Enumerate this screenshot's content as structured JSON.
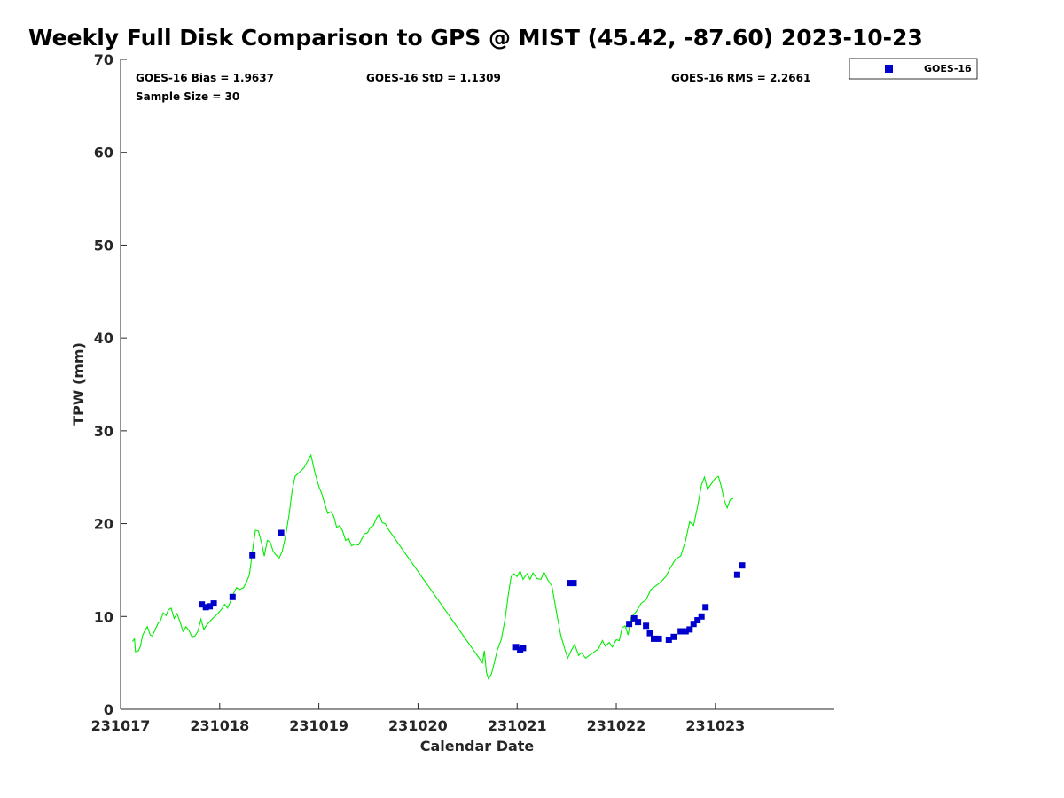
{
  "chart_data": {
    "type": "scatter",
    "title": "Weekly Full Disk Comparison to GPS @ MIST (45.42, -87.60) 2023-10-23",
    "xlabel": "Calendar Date",
    "ylabel": "TPW (mm)",
    "xlim": [
      231017,
      231024.2
    ],
    "ylim": [
      0,
      70
    ],
    "x_ticks": [
      {
        "value": 231017,
        "label": "231017"
      },
      {
        "value": 231018,
        "label": "231018"
      },
      {
        "value": 231019,
        "label": "231019"
      },
      {
        "value": 231020,
        "label": "231020"
      },
      {
        "value": 231021,
        "label": "231021"
      },
      {
        "value": 231022,
        "label": "231022"
      },
      {
        "value": 231023,
        "label": "231023"
      }
    ],
    "y_ticks": [
      {
        "value": 0,
        "label": "0"
      },
      {
        "value": 10,
        "label": "10"
      },
      {
        "value": 20,
        "label": "20"
      },
      {
        "value": 30,
        "label": "30"
      },
      {
        "value": 40,
        "label": "40"
      },
      {
        "value": 50,
        "label": "50"
      },
      {
        "value": 60,
        "label": "60"
      },
      {
        "value": 70,
        "label": "70"
      }
    ],
    "stats": {
      "bias": "GOES-16 Bias = 1.9637",
      "std": "GOES-16 StD = 1.1309",
      "rms": "GOES-16 RMS = 2.2661",
      "sample": "Sample Size = 30"
    },
    "legend": {
      "position": "outside-top-right",
      "entries": [
        "GOES-16"
      ]
    },
    "grid": false,
    "colors": {
      "gps_line": "#00ee00",
      "goes16": "#0000cc"
    },
    "series": [
      {
        "kind": "line",
        "color": "#00ee00",
        "points": [
          [
            231017.12,
            7.3
          ],
          [
            231017.14,
            7.6
          ],
          [
            231017.15,
            6.2
          ],
          [
            231017.18,
            6.3
          ],
          [
            231017.2,
            6.8
          ],
          [
            231017.22,
            7.9
          ],
          [
            231017.25,
            8.6
          ],
          [
            231017.27,
            8.9
          ],
          [
            231017.3,
            8.0
          ],
          [
            231017.32,
            7.9
          ],
          [
            231017.35,
            8.6
          ],
          [
            231017.38,
            9.3
          ],
          [
            231017.4,
            9.5
          ],
          [
            231017.43,
            10.4
          ],
          [
            231017.46,
            10.1
          ],
          [
            231017.48,
            10.7
          ],
          [
            231017.51,
            10.9
          ],
          [
            231017.54,
            9.8
          ],
          [
            231017.57,
            10.3
          ],
          [
            231017.6,
            9.4
          ],
          [
            231017.63,
            8.4
          ],
          [
            231017.66,
            8.9
          ],
          [
            231017.69,
            8.5
          ],
          [
            231017.72,
            7.8
          ],
          [
            231017.75,
            7.9
          ],
          [
            231017.78,
            8.4
          ],
          [
            231017.81,
            9.7
          ],
          [
            231017.84,
            8.6
          ],
          [
            231017.87,
            9.1
          ],
          [
            231017.92,
            9.7
          ],
          [
            231017.98,
            10.3
          ],
          [
            231018.02,
            10.8
          ],
          [
            231018.05,
            11.3
          ],
          [
            231018.08,
            10.9
          ],
          [
            231018.1,
            11.4
          ],
          [
            231018.14,
            12.5
          ],
          [
            231018.17,
            13.1
          ],
          [
            231018.2,
            12.9
          ],
          [
            231018.24,
            13.1
          ],
          [
            231018.27,
            13.7
          ],
          [
            231018.3,
            14.5
          ],
          [
            231018.33,
            17.0
          ],
          [
            231018.36,
            19.3
          ],
          [
            231018.39,
            19.2
          ],
          [
            231018.42,
            18.0
          ],
          [
            231018.45,
            16.5
          ],
          [
            231018.48,
            18.2
          ],
          [
            231018.51,
            18.0
          ],
          [
            231018.54,
            17.0
          ],
          [
            231018.57,
            16.6
          ],
          [
            231018.6,
            16.3
          ],
          [
            231018.63,
            17.0
          ],
          [
            231018.66,
            18.4
          ],
          [
            231018.7,
            21.0
          ],
          [
            231018.73,
            23.5
          ],
          [
            231018.76,
            25.1
          ],
          [
            231018.8,
            25.5
          ],
          [
            231018.85,
            26.0
          ],
          [
            231018.92,
            27.4
          ],
          [
            231018.96,
            25.5
          ],
          [
            231019.0,
            24.0
          ],
          [
            231019.03,
            23.2
          ],
          [
            231019.06,
            22.1
          ],
          [
            231019.09,
            21.1
          ],
          [
            231019.12,
            21.3
          ],
          [
            231019.15,
            20.8
          ],
          [
            231019.18,
            19.6
          ],
          [
            231019.21,
            19.8
          ],
          [
            231019.24,
            19.2
          ],
          [
            231019.27,
            18.2
          ],
          [
            231019.3,
            18.4
          ],
          [
            231019.33,
            17.6
          ],
          [
            231019.36,
            17.8
          ],
          [
            231019.4,
            17.7
          ],
          [
            231019.43,
            18.3
          ],
          [
            231019.46,
            18.9
          ],
          [
            231019.49,
            19.0
          ],
          [
            231019.52,
            19.6
          ],
          [
            231019.55,
            19.8
          ],
          [
            231019.58,
            20.6
          ],
          [
            231019.61,
            21.0
          ],
          [
            231019.64,
            20.1
          ],
          [
            231019.67,
            20.0
          ],
          [
            231019.7,
            19.4
          ],
          [
            231020.65,
            5.0
          ],
          [
            231020.67,
            6.3
          ],
          [
            231020.69,
            4.0
          ],
          [
            231020.71,
            3.3
          ],
          [
            231020.74,
            3.8
          ],
          [
            231020.77,
            5.0
          ],
          [
            231020.8,
            6.4
          ],
          [
            231020.84,
            7.5
          ],
          [
            231020.88,
            9.8
          ],
          [
            231020.91,
            12.3
          ],
          [
            231020.94,
            14.3
          ],
          [
            231020.97,
            14.6
          ],
          [
            231021.0,
            14.3
          ],
          [
            231021.03,
            14.9
          ],
          [
            231021.06,
            14.0
          ],
          [
            231021.1,
            14.6
          ],
          [
            231021.13,
            14.0
          ],
          [
            231021.16,
            14.7
          ],
          [
            231021.2,
            14.1
          ],
          [
            231021.24,
            14.0
          ],
          [
            231021.27,
            14.8
          ],
          [
            231021.31,
            13.9
          ],
          [
            231021.35,
            13.3
          ],
          [
            231021.4,
            10.3
          ],
          [
            231021.44,
            8.0
          ],
          [
            231021.48,
            6.5
          ],
          [
            231021.51,
            5.5
          ],
          [
            231021.55,
            6.4
          ],
          [
            231021.58,
            7.0
          ],
          [
            231021.62,
            5.8
          ],
          [
            231021.65,
            6.1
          ],
          [
            231021.69,
            5.5
          ],
          [
            231021.74,
            5.9
          ],
          [
            231021.78,
            6.2
          ],
          [
            231021.82,
            6.5
          ],
          [
            231021.86,
            7.4
          ],
          [
            231021.89,
            6.8
          ],
          [
            231021.93,
            7.2
          ],
          [
            231021.96,
            6.7
          ],
          [
            231022.0,
            7.5
          ],
          [
            231022.03,
            7.4
          ],
          [
            231022.06,
            8.8
          ],
          [
            231022.09,
            9.0
          ],
          [
            231022.12,
            8.0
          ],
          [
            231022.15,
            9.9
          ],
          [
            231022.2,
            10.5
          ],
          [
            231022.25,
            11.4
          ],
          [
            231022.3,
            11.8
          ],
          [
            231022.35,
            12.9
          ],
          [
            231022.4,
            13.3
          ],
          [
            231022.45,
            13.7
          ],
          [
            231022.5,
            14.3
          ],
          [
            231022.55,
            15.3
          ],
          [
            231022.6,
            16.2
          ],
          [
            231022.65,
            16.5
          ],
          [
            231022.7,
            18.2
          ],
          [
            231022.74,
            20.2
          ],
          [
            231022.78,
            19.8
          ],
          [
            231022.82,
            21.8
          ],
          [
            231022.86,
            24.2
          ],
          [
            231022.89,
            25.0
          ],
          [
            231022.92,
            23.7
          ],
          [
            231022.96,
            24.3
          ],
          [
            231023.0,
            24.9
          ],
          [
            231023.03,
            25.1
          ],
          [
            231023.06,
            24.0
          ],
          [
            231023.09,
            22.5
          ],
          [
            231023.12,
            21.7
          ],
          [
            231023.15,
            22.6
          ],
          [
            231023.18,
            22.7
          ]
        ]
      },
      {
        "name": "GOES-16",
        "kind": "scatter",
        "color": "#0000cc",
        "points": [
          [
            231017.82,
            11.3
          ],
          [
            231017.86,
            11.0
          ],
          [
            231017.9,
            11.1
          ],
          [
            231017.94,
            11.4
          ],
          [
            231018.13,
            12.1
          ],
          [
            231018.33,
            16.6
          ],
          [
            231018.62,
            19.0
          ],
          [
            231020.99,
            6.7
          ],
          [
            231021.03,
            6.4
          ],
          [
            231021.06,
            6.6
          ],
          [
            231021.53,
            13.6
          ],
          [
            231021.57,
            13.6
          ],
          [
            231022.13,
            9.2
          ],
          [
            231022.18,
            9.8
          ],
          [
            231022.22,
            9.4
          ],
          [
            231022.3,
            9.0
          ],
          [
            231022.34,
            8.2
          ],
          [
            231022.38,
            7.6
          ],
          [
            231022.43,
            7.6
          ],
          [
            231022.53,
            7.5
          ],
          [
            231022.58,
            7.8
          ],
          [
            231022.65,
            8.4
          ],
          [
            231022.7,
            8.4
          ],
          [
            231022.74,
            8.6
          ],
          [
            231022.78,
            9.2
          ],
          [
            231022.82,
            9.6
          ],
          [
            231022.86,
            10.0
          ],
          [
            231022.9,
            11.0
          ],
          [
            231023.22,
            14.5
          ],
          [
            231023.27,
            15.5
          ]
        ]
      }
    ]
  }
}
